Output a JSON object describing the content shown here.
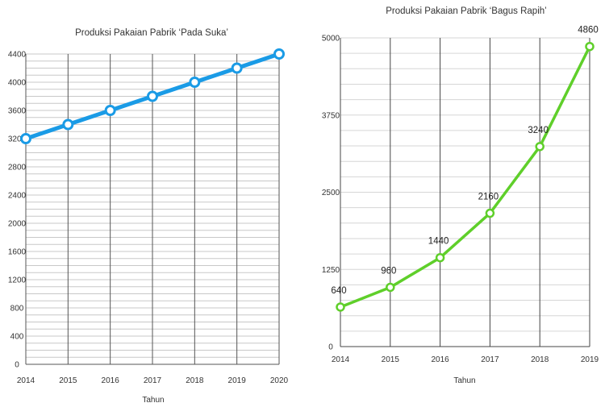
{
  "chart_data": [
    {
      "type": "line",
      "title": "Produksi Pakaian Pabrik ‘Pada Suka’",
      "xlabel": "Tahun",
      "ylabel": "",
      "x": [
        "2014",
        "2015",
        "2016",
        "2017",
        "2018",
        "2019",
        "2020"
      ],
      "series": [
        {
          "values": [
            3200,
            3400,
            3600,
            3800,
            4000,
            4200,
            4400
          ]
        }
      ],
      "ylim": [
        0,
        4400
      ],
      "yticks": [
        "0",
        "400",
        "800",
        "1200",
        "1600",
        "2000",
        "2400",
        "2800",
        "3200",
        "3600",
        "4000",
        "4400"
      ],
      "grid": true,
      "line_color": "#1a9be6",
      "marker_fill": "#ffffff",
      "grid_color": "#c8c8c8",
      "vgrid_color": "#555555"
    },
    {
      "type": "line",
      "title": "Produksi Pakaian Pabrik ‘Bagus Rapih’",
      "xlabel": "Tahun",
      "ylabel": "",
      "x": [
        "2014",
        "2015",
        "2016",
        "2017",
        "2018",
        "2019"
      ],
      "series": [
        {
          "values": [
            640,
            960,
            1440,
            2160,
            3240,
            4860
          ]
        }
      ],
      "data_labels": [
        "640",
        "960",
        "1440",
        "2160",
        "3240",
        "4860"
      ],
      "ylim": [
        0,
        5000
      ],
      "yticks": [
        "0",
        "1250",
        "2500",
        "3750",
        "5000"
      ],
      "grid": true,
      "line_color": "#5fcf2a",
      "marker_fill": "#ffffff",
      "grid_color": "#d6d6d6",
      "vgrid_color": "#444444"
    }
  ]
}
